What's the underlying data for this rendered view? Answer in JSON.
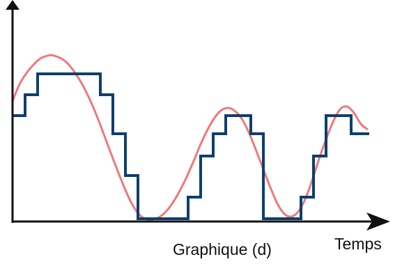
{
  "chart_data": {
    "type": "line",
    "caption": "Graphique (d)",
    "xlabel": "Temps",
    "ylabel": "",
    "xlim": [
      0,
      520
    ],
    "ylim": [
      0,
      242
    ],
    "grid": false,
    "series": [
      {
        "style": "smooth",
        "color": "#f07878",
        "x": [
          0,
          10,
          20,
          30,
          40,
          50,
          55,
          60,
          70,
          80,
          90,
          100,
          110,
          120,
          130,
          140,
          150,
          160,
          170,
          180,
          190,
          200,
          210,
          220,
          230,
          240,
          250,
          260,
          270,
          280,
          290,
          300,
          310,
          320,
          330,
          340,
          350,
          360,
          370,
          380,
          390,
          400,
          410,
          420,
          430,
          440,
          450,
          460,
          470,
          480,
          490,
          500,
          510
        ],
        "y": [
          173,
          197,
          213,
          225,
          234,
          238,
          239,
          238,
          234,
          226,
          213,
          197,
          177,
          154,
          128,
          101,
          75,
          50,
          28,
          12,
          4,
          3,
          6,
          14,
          27,
          44,
          64,
          87,
          111,
          132,
          149,
          160,
          163,
          158,
          146,
          126,
          101,
          75,
          49,
          26,
          11,
          7,
          14,
          32,
          59,
          90,
          118,
          143,
          161,
          165,
          156,
          140,
          132
        ]
      },
      {
        "style": "step",
        "color": "#0d3f6f",
        "x": [
          0,
          18,
          36,
          54,
          72,
          90,
          108,
          126,
          144,
          162,
          180,
          198,
          216,
          234,
          252,
          270,
          288,
          306,
          324,
          342,
          360,
          378,
          396,
          414,
          432,
          450,
          468,
          486,
          504,
          512
        ],
        "y": [
          152,
          182,
          212,
          212,
          212,
          212,
          212,
          182,
          126,
          66,
          4,
          4,
          4,
          4,
          35,
          94,
          126,
          152,
          152,
          126,
          4,
          4,
          4,
          35,
          94,
          152,
          152,
          126,
          126,
          126
        ]
      }
    ]
  }
}
